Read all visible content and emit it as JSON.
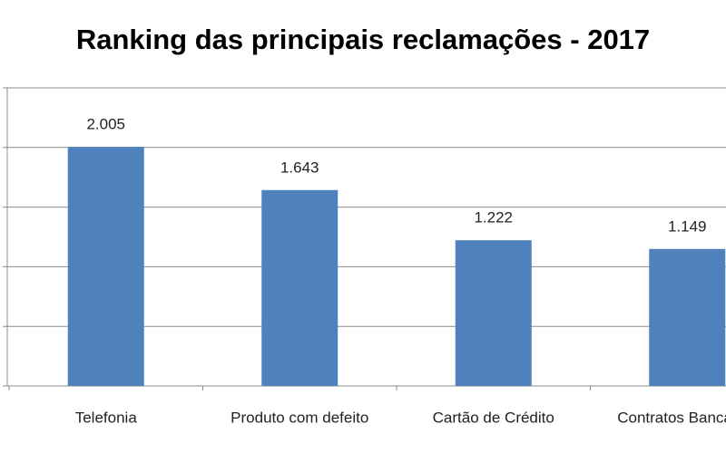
{
  "chart_data": {
    "type": "bar",
    "title": "Ranking das principais reclamações - 2017",
    "categories": [
      "Telefonia",
      "Produto com defeito",
      "Cartão de Crédito",
      "Contratos Bancários"
    ],
    "values": [
      2005,
      1643,
      1222,
      1149
    ],
    "value_labels": [
      "2.005",
      "1.643",
      "1.222",
      "1.149"
    ],
    "color": "#4f81bd",
    "ylim": [
      0,
      2500
    ],
    "yticks": [
      0,
      500,
      1000,
      1500,
      2000,
      2500
    ],
    "grid": true
  }
}
